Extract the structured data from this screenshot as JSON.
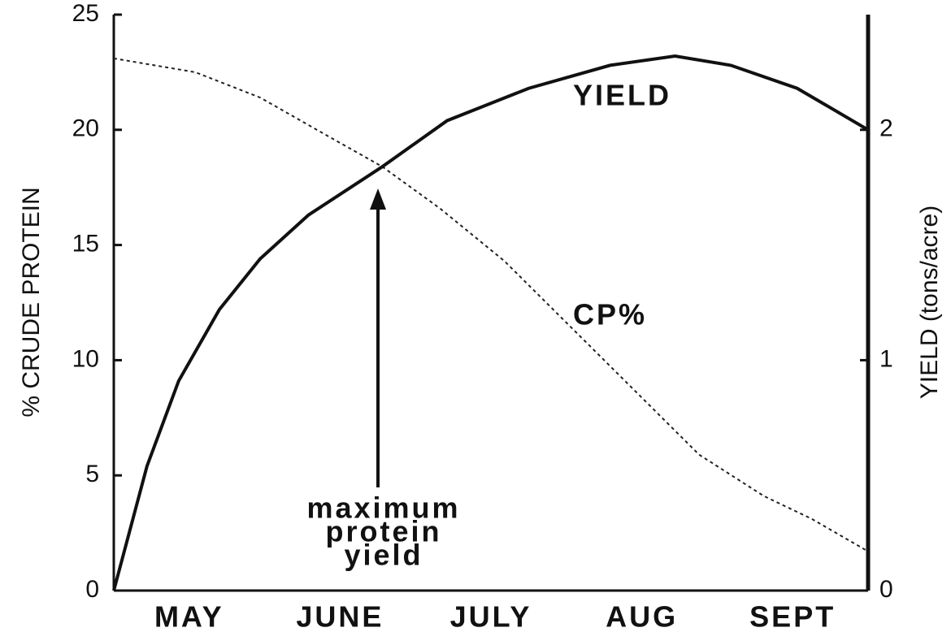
{
  "chart_data": {
    "type": "line",
    "y_label": "% CRUDE PROTEIN",
    "y2_label": "YIELD (tons/acre)",
    "annotation": [
      "maximum",
      "protein",
      "yield"
    ],
    "xlim": [
      0,
      5
    ],
    "xticks": [
      {
        "value": 0.5,
        "label": "MAY"
      },
      {
        "value": 1.5,
        "label": "JUNE"
      },
      {
        "value": 2.5,
        "label": "JULY"
      },
      {
        "value": 3.5,
        "label": "AUG"
      },
      {
        "value": 4.5,
        "label": "SEPT"
      }
    ],
    "ylim": [
      0,
      25
    ],
    "yticks": [
      0,
      5,
      10,
      15,
      20,
      25
    ],
    "y2lim": [
      0,
      2.5
    ],
    "y2ticks": [
      0,
      1,
      2
    ],
    "series": [
      {
        "name": "CP%",
        "color": "#222",
        "style": "dotted",
        "x": [
          0,
          0.54,
          0.97,
          1.4,
          1.78,
          2.16,
          2.59,
          3.02,
          3.45,
          3.88,
          4.31,
          4.63,
          5
        ],
        "values": [
          23.1,
          22.5,
          21.4,
          19.8,
          18.4,
          16.6,
          14.3,
          11.5,
          8.7,
          5.9,
          4.1,
          3.1,
          1.7
        ]
      },
      {
        "name": "YIELD",
        "color": "#111",
        "style": "solid",
        "axis": "y2",
        "x": [
          0,
          0.22,
          0.43,
          0.7,
          0.97,
          1.29,
          1.78,
          2.21,
          2.75,
          3.29,
          3.72,
          4.09,
          4.53,
          5
        ],
        "values": [
          0,
          0.54,
          0.91,
          1.22,
          1.44,
          1.63,
          1.84,
          2.04,
          2.18,
          2.28,
          2.32,
          2.28,
          2.18,
          2.0
        ]
      }
    ]
  }
}
